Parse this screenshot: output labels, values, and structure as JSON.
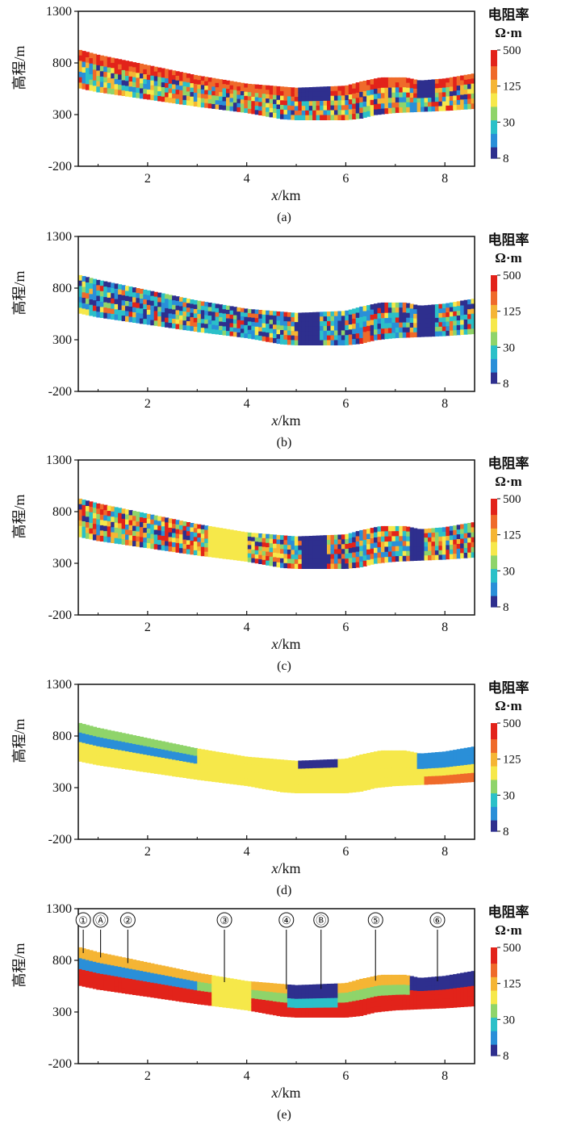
{
  "chart_data": [
    {
      "type": "heatmap",
      "panel": "(a)",
      "xlabel_var": "x",
      "xlabel_unit": "/km",
      "ylabel": "高程/m",
      "xlim": [
        0.6,
        8.6
      ],
      "ylim": [
        -200,
        1300
      ],
      "xticks": [
        2,
        4,
        6,
        8
      ],
      "yticks": [
        1300,
        800,
        300,
        -200
      ],
      "colorbar": {
        "title_line1": "电阻率",
        "title_line2": "Ω·m",
        "labels": [
          "500",
          "125",
          "30",
          "8"
        ]
      },
      "style": "noisy-vertical"
    },
    {
      "type": "heatmap",
      "panel": "(b)",
      "xlabel_var": "x",
      "xlabel_unit": "/km",
      "ylabel": "高程/m",
      "xlim": [
        0.6,
        8.6
      ],
      "ylim": [
        -200,
        1300
      ],
      "xticks": [
        2,
        4,
        6,
        8
      ],
      "yticks": [
        1300,
        800,
        300,
        -200
      ],
      "colorbar": {
        "title_line1": "电阻率",
        "title_line2": "Ω·m",
        "labels": [
          "500",
          "125",
          "30",
          "8"
        ]
      },
      "style": "noisy-blue"
    },
    {
      "type": "heatmap",
      "panel": "(c)",
      "xlabel_var": "x",
      "xlabel_unit": "/km",
      "ylabel": "高程/m",
      "xlim": [
        0.6,
        8.6
      ],
      "ylim": [
        -200,
        1300
      ],
      "xticks": [
        2,
        4,
        6,
        8
      ],
      "yticks": [
        1300,
        800,
        300,
        -200
      ],
      "colorbar": {
        "title_line1": "电阻率",
        "title_line2": "Ω·m",
        "labels": [
          "500",
          "125",
          "30",
          "8"
        ]
      },
      "style": "blocky"
    },
    {
      "type": "heatmap",
      "panel": "(d)",
      "xlabel_var": "x",
      "xlabel_unit": "/km",
      "ylabel": "高程/m",
      "xlim": [
        0.6,
        8.6
      ],
      "ylim": [
        -200,
        1300
      ],
      "xticks": [
        2,
        4,
        6,
        8
      ],
      "yticks": [
        1300,
        800,
        300,
        -200
      ],
      "colorbar": {
        "title_line1": "电阻率",
        "title_line2": "Ω·m",
        "labels": [
          "500",
          "125",
          "30",
          "8"
        ]
      },
      "style": "smooth"
    },
    {
      "type": "heatmap",
      "panel": "(e)",
      "xlabel_var": "x",
      "xlabel_unit": "/km",
      "ylabel": "高程/m",
      "xlim": [
        0.6,
        8.6
      ],
      "ylim": [
        -200,
        1300
      ],
      "xticks": [
        2,
        4,
        6,
        8
      ],
      "yticks": [
        1300,
        800,
        300,
        -200
      ],
      "colorbar": {
        "title_line1": "电阻率",
        "title_line2": "Ω·m",
        "labels": [
          "500",
          "125",
          "30",
          "8"
        ]
      },
      "style": "layered",
      "annotations": [
        {
          "label": "①",
          "x": 0.7
        },
        {
          "label": "Ⓐ",
          "x": 1.05
        },
        {
          "label": "②",
          "x": 1.6
        },
        {
          "label": "③",
          "x": 3.55
        },
        {
          "label": "④",
          "x": 4.8
        },
        {
          "label": "Ⓑ",
          "x": 5.5
        },
        {
          "label": "⑤",
          "x": 6.6
        },
        {
          "label": "⑥",
          "x": 7.85
        }
      ]
    }
  ],
  "colors": {
    "palette": [
      "#2e2f8e",
      "#2a8fd8",
      "#2bc0c8",
      "#8fd46a",
      "#f6e84a",
      "#f5b534",
      "#ef6a2a",
      "#e2231a"
    ],
    "axis": "#111111"
  }
}
